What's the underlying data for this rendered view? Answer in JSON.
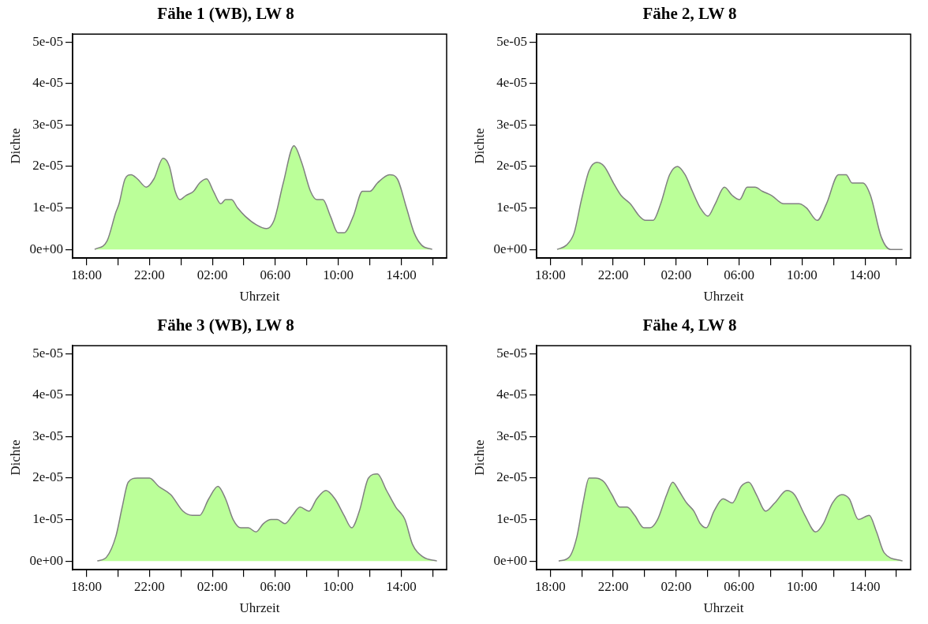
{
  "chart_data": [
    {
      "type": "area",
      "title": "Fähe 1 (WB), LW 8",
      "xlabel": "Uhrzeit",
      "ylabel": "Dichte",
      "color": "#bbff99",
      "x": [
        "2000-01-01T18:31",
        "2000-01-01T19:18",
        "2000-01-01T19:52",
        "2000-01-01T20:04",
        "2000-01-01T20:27",
        "2000-01-01T20:50",
        "2000-01-01T21:14",
        "2000-01-01T21:48",
        "2000-01-01T22:17",
        "2000-01-01T22:52",
        "2000-01-01T23:16",
        "2000-01-01T23:38",
        "2000-01-01T23:56",
        "2000-01-02T00:19",
        "2000-01-02T00:48",
        "2000-01-02T01:11",
        "2000-01-02T01:38",
        "2000-01-02T02:04",
        "2000-01-02T02:32",
        "2000-01-02T02:50",
        "2000-01-02T03:13",
        "2000-01-02T03:36",
        "2000-01-02T04:05",
        "2000-01-02T04:46",
        "2000-01-02T05:26",
        "2000-01-02T05:55",
        "2000-01-02T06:30",
        "2000-01-02T07:11",
        "2000-01-02T07:40",
        "2000-01-02T08:14",
        "2000-01-02T08:38",
        "2000-01-02T09:01",
        "2000-01-02T09:30",
        "2000-01-02T09:59",
        "2000-01-02T10:22",
        "2000-01-02T10:57",
        "2000-01-02T11:32",
        "2000-01-02T12:01",
        "2000-01-02T12:29",
        "2000-01-02T13:16",
        "2000-01-02T13:45",
        "2000-01-02T14:20",
        "2000-01-02T14:49",
        "2000-01-02T15:18",
        "2000-01-02T15:58"
      ],
      "values": [
        0,
        2e-06,
        9e-06,
        1.1e-05,
        1.7e-05,
        1.8e-05,
        1.7e-05,
        1.5e-05,
        1.7e-05,
        2.2e-05,
        2e-05,
        1.4e-05,
        1.2e-05,
        1.3e-05,
        1.4e-05,
        1.6e-05,
        1.7e-05,
        1.4e-05,
        1.1e-05,
        1.2e-05,
        1.2e-05,
        1e-05,
        8e-06,
        6e-06,
        5e-06,
        7e-06,
        1.6e-05,
        2.5e-05,
        2.1e-05,
        1.4e-05,
        1.2e-05,
        1.2e-05,
        8e-06,
        4e-06,
        4e-06,
        8e-06,
        1.4e-05,
        1.4e-05,
        1.6e-05,
        1.8e-05,
        1.7e-05,
        1e-05,
        4e-06,
        1e-06,
        0
      ],
      "xlim": [
        "2000-01-01T17:07",
        "2000-01-02T16:53"
      ],
      "ylim": [
        -2.1e-06,
        5.19e-05
      ],
      "xticks": [
        {
          "value": "2000-01-01T18:00",
          "label": "18:00"
        },
        {
          "value": "2000-01-01T20:00",
          "label": null
        },
        {
          "value": "2000-01-01T22:00",
          "label": "22:00"
        },
        {
          "value": "2000-01-02T00:00",
          "label": null
        },
        {
          "value": "2000-01-02T02:00",
          "label": "02:00"
        },
        {
          "value": "2000-01-02T04:00",
          "label": null
        },
        {
          "value": "2000-01-02T06:00",
          "label": "06:00"
        },
        {
          "value": "2000-01-02T08:00",
          "label": null
        },
        {
          "value": "2000-01-02T10:00",
          "label": "10:00"
        },
        {
          "value": "2000-01-02T12:00",
          "label": null
        },
        {
          "value": "2000-01-02T14:00",
          "label": "14:00"
        },
        {
          "value": "2000-01-02T16:00",
          "label": null
        }
      ],
      "yticks": [
        {
          "value": 0,
          "label": "0e+00"
        },
        {
          "value": 1e-05,
          "label": "1e-05"
        },
        {
          "value": 2e-05,
          "label": "2e-05"
        },
        {
          "value": 3e-05,
          "label": "3e-05"
        },
        {
          "value": 4e-05,
          "label": "4e-05"
        },
        {
          "value": 5e-05,
          "label": "5e-05"
        }
      ]
    },
    {
      "type": "area",
      "title": "Fähe 2, LW 8",
      "xlabel": "Uhrzeit",
      "ylabel": "Dichte",
      "color": "#bbff99",
      "x": [
        "2000-01-01T18:26",
        "2000-01-01T19:01",
        "2000-01-01T19:31",
        "2000-01-01T19:59",
        "2000-01-01T20:28",
        "2000-01-01T20:58",
        "2000-01-01T21:26",
        "2000-01-01T22:01",
        "2000-01-01T22:30",
        "2000-01-01T23:05",
        "2000-01-01T23:40",
        "2000-01-02T00:03",
        "2000-01-02T00:32",
        "2000-01-02T01:01",
        "2000-01-02T01:35",
        "2000-01-02T02:05",
        "2000-01-02T02:34",
        "2000-01-02T03:02",
        "2000-01-02T03:32",
        "2000-01-02T04:01",
        "2000-01-02T04:29",
        "2000-01-02T05:04",
        "2000-01-02T05:34",
        "2000-01-02T06:02",
        "2000-01-02T06:31",
        "2000-01-02T07:01",
        "2000-01-02T07:29",
        "2000-01-02T08:04",
        "2000-01-02T08:50",
        "2000-01-02T09:19",
        "2000-01-02T09:49",
        "2000-01-02T10:17",
        "2000-01-02T10:58",
        "2000-01-02T11:33",
        "2000-01-02T12:19",
        "2000-01-02T12:48",
        "2000-01-02T13:11",
        "2000-01-02T13:52",
        "2000-01-02T14:21",
        "2000-01-02T15:02",
        "2000-01-02T15:37",
        "2000-01-02T16:23"
      ],
      "values": [
        0,
        1e-06,
        4e-06,
        1.2e-05,
        1.9e-05,
        2.1e-05,
        2e-05,
        1.6e-05,
        1.3e-05,
        1.1e-05,
        8e-06,
        7e-06,
        7e-06,
        1.1e-05,
        1.8e-05,
        2e-05,
        1.8e-05,
        1.4e-05,
        1e-05,
        8e-06,
        1.1e-05,
        1.5e-05,
        1.3e-05,
        1.2e-05,
        1.5e-05,
        1.5e-05,
        1.4e-05,
        1.3e-05,
        1.1e-05,
        1.1e-05,
        1.1e-05,
        1e-05,
        7e-06,
        1.1e-05,
        1.8e-05,
        1.8e-05,
        1.6e-05,
        1.6e-05,
        1.3e-05,
        3e-06,
        0,
        0
      ],
      "xlim": [
        "2000-01-01T17:08",
        "2000-01-02T16:54"
      ],
      "ylim": [
        -2.1e-06,
        5.19e-05
      ],
      "xticks": [
        {
          "value": "2000-01-01T18:00",
          "label": "18:00"
        },
        {
          "value": "2000-01-01T20:00",
          "label": null
        },
        {
          "value": "2000-01-01T22:00",
          "label": "22:00"
        },
        {
          "value": "2000-01-02T00:00",
          "label": null
        },
        {
          "value": "2000-01-02T02:00",
          "label": "02:00"
        },
        {
          "value": "2000-01-02T04:00",
          "label": null
        },
        {
          "value": "2000-01-02T06:00",
          "label": "06:00"
        },
        {
          "value": "2000-01-02T08:00",
          "label": null
        },
        {
          "value": "2000-01-02T10:00",
          "label": "10:00"
        },
        {
          "value": "2000-01-02T12:00",
          "label": null
        },
        {
          "value": "2000-01-02T14:00",
          "label": "14:00"
        },
        {
          "value": "2000-01-02T16:00",
          "label": null
        }
      ],
      "yticks": [
        {
          "value": 0,
          "label": "0e+00"
        },
        {
          "value": 1e-05,
          "label": "1e-05"
        },
        {
          "value": 2e-05,
          "label": "2e-05"
        },
        {
          "value": 3e-05,
          "label": "3e-05"
        },
        {
          "value": 4e-05,
          "label": "4e-05"
        },
        {
          "value": 5e-05,
          "label": "5e-05"
        }
      ]
    },
    {
      "type": "area",
      "title": "Fähe 3 (WB), LW 8",
      "xlabel": "Uhrzeit",
      "ylabel": "Dichte",
      "color": "#bbff99",
      "x": [
        "2000-01-01T18:41",
        "2000-01-01T19:17",
        "2000-01-01T19:52",
        "2000-01-01T20:16",
        "2000-01-01T20:39",
        "2000-01-01T21:14",
        "2000-01-01T22:00",
        "2000-01-01T22:35",
        "2000-01-01T23:21",
        "2000-01-02T00:08",
        "2000-01-02T00:43",
        "2000-01-02T01:11",
        "2000-01-02T01:46",
        "2000-01-02T02:21",
        "2000-01-02T02:50",
        "2000-01-02T03:19",
        "2000-01-02T03:48",
        "2000-01-02T04:17",
        "2000-01-02T04:46",
        "2000-01-02T05:14",
        "2000-01-02T05:44",
        "2000-01-02T06:07",
        "2000-01-02T06:36",
        "2000-01-02T07:05",
        "2000-01-02T07:34",
        "2000-01-02T08:08",
        "2000-01-02T08:38",
        "2000-01-02T09:13",
        "2000-01-02T09:47",
        "2000-01-02T10:22",
        "2000-01-02T10:51",
        "2000-01-02T11:20",
        "2000-01-02T11:55",
        "2000-01-02T12:29",
        "2000-01-02T13:04",
        "2000-01-02T13:39",
        "2000-01-02T14:14",
        "2000-01-02T14:43",
        "2000-01-02T15:23",
        "2000-01-02T16:16"
      ],
      "values": [
        0,
        1e-06,
        6e-06,
        1.3e-05,
        1.9e-05,
        2e-05,
        2e-05,
        1.8e-05,
        1.6e-05,
        1.2e-05,
        1.1e-05,
        1.1e-05,
        1.5e-05,
        1.8e-05,
        1.5e-05,
        1e-05,
        8e-06,
        8e-06,
        7e-06,
        9e-06,
        1e-05,
        1e-05,
        9e-06,
        1.1e-05,
        1.3e-05,
        1.2e-05,
        1.5e-05,
        1.7e-05,
        1.5e-05,
        1.1e-05,
        8e-06,
        1.2e-05,
        2e-05,
        2.1e-05,
        1.7e-05,
        1.3e-05,
        1e-05,
        4e-06,
        1e-06,
        0
      ],
      "xlim": [
        "2000-01-01T17:07",
        "2000-01-02T16:53"
      ],
      "ylim": [
        -2.1e-06,
        5.19e-05
      ],
      "xticks": [
        {
          "value": "2000-01-01T18:00",
          "label": "18:00"
        },
        {
          "value": "2000-01-01T20:00",
          "label": null
        },
        {
          "value": "2000-01-01T22:00",
          "label": "22:00"
        },
        {
          "value": "2000-01-02T00:00",
          "label": null
        },
        {
          "value": "2000-01-02T02:00",
          "label": "02:00"
        },
        {
          "value": "2000-01-02T04:00",
          "label": null
        },
        {
          "value": "2000-01-02T06:00",
          "label": "06:00"
        },
        {
          "value": "2000-01-02T08:00",
          "label": null
        },
        {
          "value": "2000-01-02T10:00",
          "label": "10:00"
        },
        {
          "value": "2000-01-02T12:00",
          "label": null
        },
        {
          "value": "2000-01-02T14:00",
          "label": "14:00"
        },
        {
          "value": "2000-01-02T16:00",
          "label": null
        }
      ],
      "yticks": [
        {
          "value": 0,
          "label": "0e+00"
        },
        {
          "value": 1e-05,
          "label": "1e-05"
        },
        {
          "value": 2e-05,
          "label": "2e-05"
        },
        {
          "value": 3e-05,
          "label": "3e-05"
        },
        {
          "value": 4e-05,
          "label": "4e-05"
        },
        {
          "value": 5e-05,
          "label": "5e-05"
        }
      ]
    },
    {
      "type": "area",
      "title": "Fähe 4, LW 8",
      "xlabel": "Uhrzeit",
      "ylabel": "Dichte",
      "color": "#bbff99",
      "x": [
        "2000-01-01T18:32",
        "2000-01-01T19:13",
        "2000-01-01T19:42",
        "2000-01-01T20:05",
        "2000-01-01T20:28",
        "2000-01-01T20:52",
        "2000-01-01T21:26",
        "2000-01-01T21:55",
        "2000-01-01T22:25",
        "2000-01-01T22:53",
        "2000-01-01T23:22",
        "2000-01-01T23:57",
        "2000-01-02T00:20",
        "2000-01-02T00:49",
        "2000-01-02T01:24",
        "2000-01-02T01:47",
        "2000-01-02T02:10",
        "2000-01-02T02:40",
        "2000-01-02T03:08",
        "2000-01-02T03:32",
        "2000-01-02T03:55",
        "2000-01-02T04:24",
        "2000-01-02T04:59",
        "2000-01-02T05:34",
        "2000-01-02T06:08",
        "2000-01-02T06:37",
        "2000-01-02T07:06",
        "2000-01-02T07:41",
        "2000-01-02T08:16",
        "2000-01-02T09:02",
        "2000-01-02T09:31",
        "2000-01-02T10:11",
        "2000-01-02T10:52",
        "2000-01-02T11:21",
        "2000-01-02T11:56",
        "2000-01-02T12:31",
        "2000-01-02T13:00",
        "2000-01-02T13:35",
        "2000-01-02T14:16",
        "2000-01-02T14:44",
        "2000-01-02T15:13",
        "2000-01-02T16:23"
      ],
      "values": [
        0,
        1e-06,
        6e-06,
        1.4e-05,
        2e-05,
        2e-05,
        1.9e-05,
        1.6e-05,
        1.3e-05,
        1.3e-05,
        1.1e-05,
        8e-06,
        8e-06,
        1e-05,
        1.6e-05,
        1.9e-05,
        1.7e-05,
        1.4e-05,
        1.2e-05,
        9e-06,
        8e-06,
        1.2e-05,
        1.5e-05,
        1.4e-05,
        1.8e-05,
        1.9e-05,
        1.6e-05,
        1.2e-05,
        1.4e-05,
        1.7e-05,
        1.6e-05,
        1.1e-05,
        7e-06,
        9e-06,
        1.4e-05,
        1.6e-05,
        1.5e-05,
        1e-05,
        1.1e-05,
        7e-06,
        2e-06,
        0
      ],
      "xlim": [
        "2000-01-01T17:08",
        "2000-01-02T16:54"
      ],
      "ylim": [
        -2.1e-06,
        5.19e-05
      ],
      "xticks": [
        {
          "value": "2000-01-01T18:00",
          "label": "18:00"
        },
        {
          "value": "2000-01-01T20:00",
          "label": null
        },
        {
          "value": "2000-01-01T22:00",
          "label": "22:00"
        },
        {
          "value": "2000-01-02T00:00",
          "label": null
        },
        {
          "value": "2000-01-02T02:00",
          "label": "02:00"
        },
        {
          "value": "2000-01-02T04:00",
          "label": null
        },
        {
          "value": "2000-01-02T06:00",
          "label": "06:00"
        },
        {
          "value": "2000-01-02T08:00",
          "label": null
        },
        {
          "value": "2000-01-02T10:00",
          "label": "10:00"
        },
        {
          "value": "2000-01-02T12:00",
          "label": null
        },
        {
          "value": "2000-01-02T14:00",
          "label": "14:00"
        },
        {
          "value": "2000-01-02T16:00",
          "label": null
        }
      ],
      "yticks": [
        {
          "value": 0,
          "label": "0e+00"
        },
        {
          "value": 1e-05,
          "label": "1e-05"
        },
        {
          "value": 2e-05,
          "label": "2e-05"
        },
        {
          "value": 3e-05,
          "label": "3e-05"
        },
        {
          "value": 4e-05,
          "label": "4e-05"
        },
        {
          "value": 5e-05,
          "label": "5e-05"
        }
      ]
    }
  ]
}
